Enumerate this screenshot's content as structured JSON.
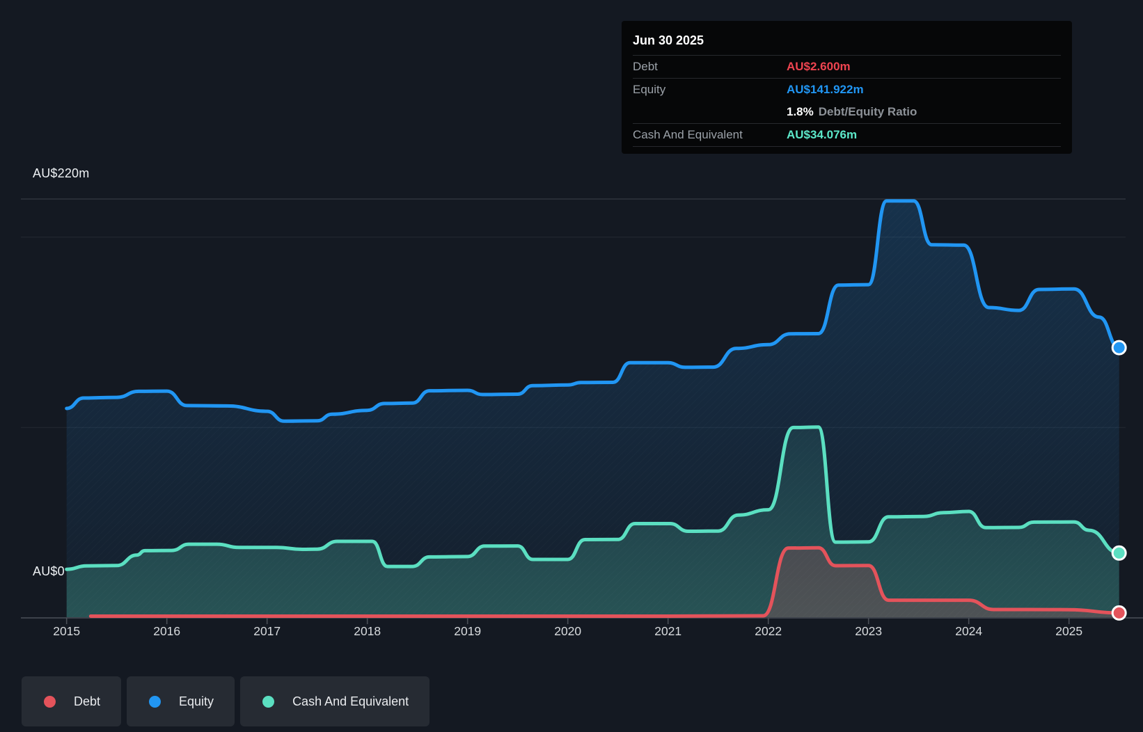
{
  "y_axis": {
    "top_label": "AU$220m",
    "bottom_label": "AU$0"
  },
  "tooltip": {
    "date": "Jun 30 2025",
    "rows": [
      {
        "label": "Debt",
        "value": "AU$2.600m"
      },
      {
        "label": "Equity",
        "value": "AU$141.922m"
      },
      {
        "label": "Cash And Equivalent",
        "value": "AU$34.076m"
      }
    ],
    "ratio_value": "1.8%",
    "ratio_label": "Debt/Equity Ratio"
  },
  "legend": {
    "items": [
      {
        "label": "Debt"
      },
      {
        "label": "Equity"
      },
      {
        "label": "Cash And Equivalent"
      }
    ]
  },
  "colors": {
    "background": "#141922",
    "debt": "#e4535b",
    "equity": "#2196f3",
    "cash": "#5bdfc1",
    "tooltip_debt_text": "#ee4450",
    "tooltip_equity_text": "#2196f3",
    "tooltip_cash_text": "#5ce8c9",
    "gridline": "rgba(255,255,255,0.055)",
    "gridline_top": "rgba(255,255,255,0.12)",
    "axis": "#3d424b",
    "year_label": "#d8dbde"
  },
  "chart_data": {
    "type": "area",
    "title": "Debt to Equity history",
    "x_unit": "year",
    "x_domain": [
      2015,
      2025.5
    ],
    "y_domain": [
      0,
      220
    ],
    "y_gridline_values": [
      220,
      200,
      100
    ],
    "x_ticks": [
      2015,
      2016,
      2017,
      2018,
      2019,
      2020,
      2021,
      2022,
      2023,
      2024,
      2025
    ],
    "grid": true,
    "legend_position": "bottom-left",
    "series": [
      {
        "name": "Equity",
        "color_key": "equity",
        "end_value_label": "AU$141.922m",
        "points": [
          [
            2015.0,
            110.0
          ],
          [
            2015.17,
            115.5
          ],
          [
            2015.5,
            115.8
          ],
          [
            2015.72,
            119.0
          ],
          [
            2016.0,
            119.1
          ],
          [
            2016.2,
            111.5
          ],
          [
            2016.6,
            111.3
          ],
          [
            2017.0,
            108.5
          ],
          [
            2017.17,
            103.3
          ],
          [
            2017.5,
            103.5
          ],
          [
            2017.65,
            107.0
          ],
          [
            2018.0,
            109.0
          ],
          [
            2018.17,
            112.6
          ],
          [
            2018.45,
            112.8
          ],
          [
            2018.62,
            119.3
          ],
          [
            2019.0,
            119.5
          ],
          [
            2019.15,
            117.3
          ],
          [
            2019.5,
            117.5
          ],
          [
            2019.65,
            122.0
          ],
          [
            2020.0,
            122.3
          ],
          [
            2020.13,
            123.6
          ],
          [
            2020.45,
            123.7
          ],
          [
            2020.62,
            134.0
          ],
          [
            2021.0,
            134.0
          ],
          [
            2021.17,
            131.6
          ],
          [
            2021.45,
            131.7
          ],
          [
            2021.68,
            141.5
          ],
          [
            2022.0,
            143.5
          ],
          [
            2022.22,
            149.2
          ],
          [
            2022.5,
            149.3
          ],
          [
            2022.7,
            174.8
          ],
          [
            2023.0,
            175.0
          ],
          [
            2023.18,
            219.0
          ],
          [
            2023.45,
            219.0
          ],
          [
            2023.63,
            196.0
          ],
          [
            2023.95,
            195.8
          ],
          [
            2024.2,
            163.0
          ],
          [
            2024.5,
            161.5
          ],
          [
            2024.7,
            172.5
          ],
          [
            2025.05,
            172.8
          ],
          [
            2025.3,
            158.0
          ],
          [
            2025.5,
            141.922
          ]
        ]
      },
      {
        "name": "Cash And Equivalent",
        "color_key": "cash",
        "end_value_label": "AU$34.076m",
        "points": [
          [
            2015.0,
            25.5
          ],
          [
            2015.2,
            27.3
          ],
          [
            2015.5,
            27.5
          ],
          [
            2015.7,
            33.0
          ],
          [
            2015.78,
            35.3
          ],
          [
            2016.05,
            35.4
          ],
          [
            2016.22,
            38.7
          ],
          [
            2016.5,
            38.7
          ],
          [
            2016.72,
            37.0
          ],
          [
            2017.1,
            37.0
          ],
          [
            2017.35,
            36.0
          ],
          [
            2017.5,
            36.1
          ],
          [
            2017.7,
            40.2
          ],
          [
            2018.05,
            40.2
          ],
          [
            2018.2,
            27.0
          ],
          [
            2018.45,
            27.0
          ],
          [
            2018.62,
            32.0
          ],
          [
            2019.0,
            32.2
          ],
          [
            2019.17,
            37.7
          ],
          [
            2019.5,
            37.8
          ],
          [
            2019.65,
            30.7
          ],
          [
            2020.0,
            30.7
          ],
          [
            2020.17,
            41.1
          ],
          [
            2020.5,
            41.2
          ],
          [
            2020.67,
            49.5
          ],
          [
            2021.02,
            49.5
          ],
          [
            2021.2,
            45.5
          ],
          [
            2021.5,
            45.6
          ],
          [
            2021.7,
            54.0
          ],
          [
            2022.0,
            56.8
          ],
          [
            2022.25,
            100.0
          ],
          [
            2022.5,
            100.2
          ],
          [
            2022.67,
            39.8
          ],
          [
            2023.0,
            39.9
          ],
          [
            2023.2,
            53.1
          ],
          [
            2023.55,
            53.3
          ],
          [
            2023.75,
            55.3
          ],
          [
            2024.0,
            55.9
          ],
          [
            2024.17,
            47.4
          ],
          [
            2024.5,
            47.5
          ],
          [
            2024.65,
            50.3
          ],
          [
            2025.05,
            50.4
          ],
          [
            2025.2,
            46.0
          ],
          [
            2025.5,
            34.076
          ]
        ]
      },
      {
        "name": "Debt",
        "color_key": "debt",
        "end_value_label": "AU$2.600m",
        "points": [
          [
            2015.24,
            0.9
          ],
          [
            2016.0,
            0.9
          ],
          [
            2017.0,
            0.9
          ],
          [
            2018.0,
            0.9
          ],
          [
            2019.0,
            0.9
          ],
          [
            2020.0,
            0.9
          ],
          [
            2021.0,
            0.9
          ],
          [
            2021.95,
            1.1
          ],
          [
            2022.2,
            36.7
          ],
          [
            2022.5,
            36.8
          ],
          [
            2022.67,
            27.4
          ],
          [
            2023.0,
            27.5
          ],
          [
            2023.2,
            9.3
          ],
          [
            2024.0,
            9.3
          ],
          [
            2024.25,
            4.4
          ],
          [
            2024.6,
            4.4
          ],
          [
            2025.0,
            4.3
          ],
          [
            2025.5,
            2.6
          ]
        ]
      }
    ]
  }
}
